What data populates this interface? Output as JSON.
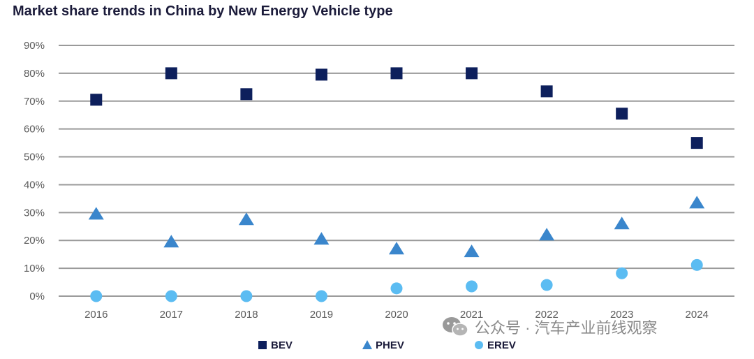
{
  "chart_data": {
    "type": "scatter",
    "title": "Market share trends in China by New Energy Vehicle type",
    "categories": [
      "2016",
      "2017",
      "2018",
      "2019",
      "2020",
      "2021",
      "2022",
      "2023",
      "2024"
    ],
    "ylim": [
      0,
      90
    ],
    "yticks": [
      0,
      10,
      20,
      30,
      40,
      50,
      60,
      70,
      80,
      90
    ],
    "ytick_labels": [
      "0%",
      "10%",
      "20%",
      "30%",
      "40%",
      "50%",
      "60%",
      "70%",
      "80%",
      "90%"
    ],
    "grid": true,
    "legend_position": "bottom",
    "series": [
      {
        "name": "BEV",
        "marker": "square",
        "color": "#0d1f5c",
        "values": [
          70.5,
          80,
          72.5,
          79.5,
          80,
          80,
          73.5,
          65.5,
          55
        ]
      },
      {
        "name": "PHEV",
        "marker": "triangle",
        "color": "#3a86cc",
        "values": [
          29.5,
          19.5,
          27.5,
          20.5,
          17,
          16,
          22,
          26,
          33.5
        ]
      },
      {
        "name": "EREV",
        "marker": "circle",
        "color": "#5bbcf2",
        "values": [
          0,
          0,
          0,
          0,
          2.8,
          3.5,
          4,
          8.2,
          11.2
        ]
      }
    ]
  },
  "watermark": {
    "text": "公众号 · 汽车产业前线观察",
    "icon": "wechat-icon"
  }
}
